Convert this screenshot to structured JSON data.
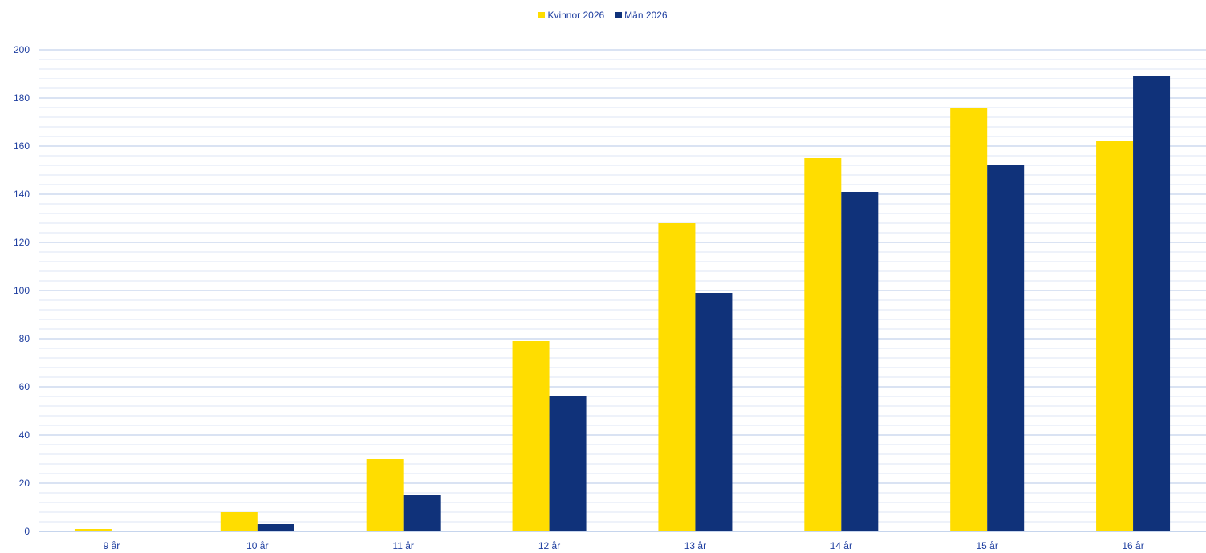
{
  "chart_data": {
    "type": "bar",
    "title": "",
    "xlabel": "",
    "ylabel": "",
    "categories": [
      "9 år",
      "10 år",
      "11 år",
      "12 år",
      "13 år",
      "14 år",
      "15 år",
      "16 år"
    ],
    "series": [
      {
        "name": "Kvinnor 2026",
        "color": "#FFDD00",
        "values": [
          1,
          8,
          30,
          79,
          128,
          155,
          176,
          162
        ]
      },
      {
        "name": "Män 2026",
        "color": "#10327A",
        "values": [
          0,
          3,
          15,
          56,
          99,
          141,
          152,
          189
        ]
      }
    ],
    "ylim": [
      0,
      200
    ],
    "yticks": [
      0,
      20,
      40,
      60,
      80,
      100,
      120,
      140,
      160,
      180,
      200
    ],
    "minor_step": 4,
    "grid": true,
    "legend_position": "top-center",
    "colors": {
      "text": "#1F3FA0",
      "major_grid": "#B4C7E7",
      "minor_grid": "#DDE6F4"
    }
  }
}
